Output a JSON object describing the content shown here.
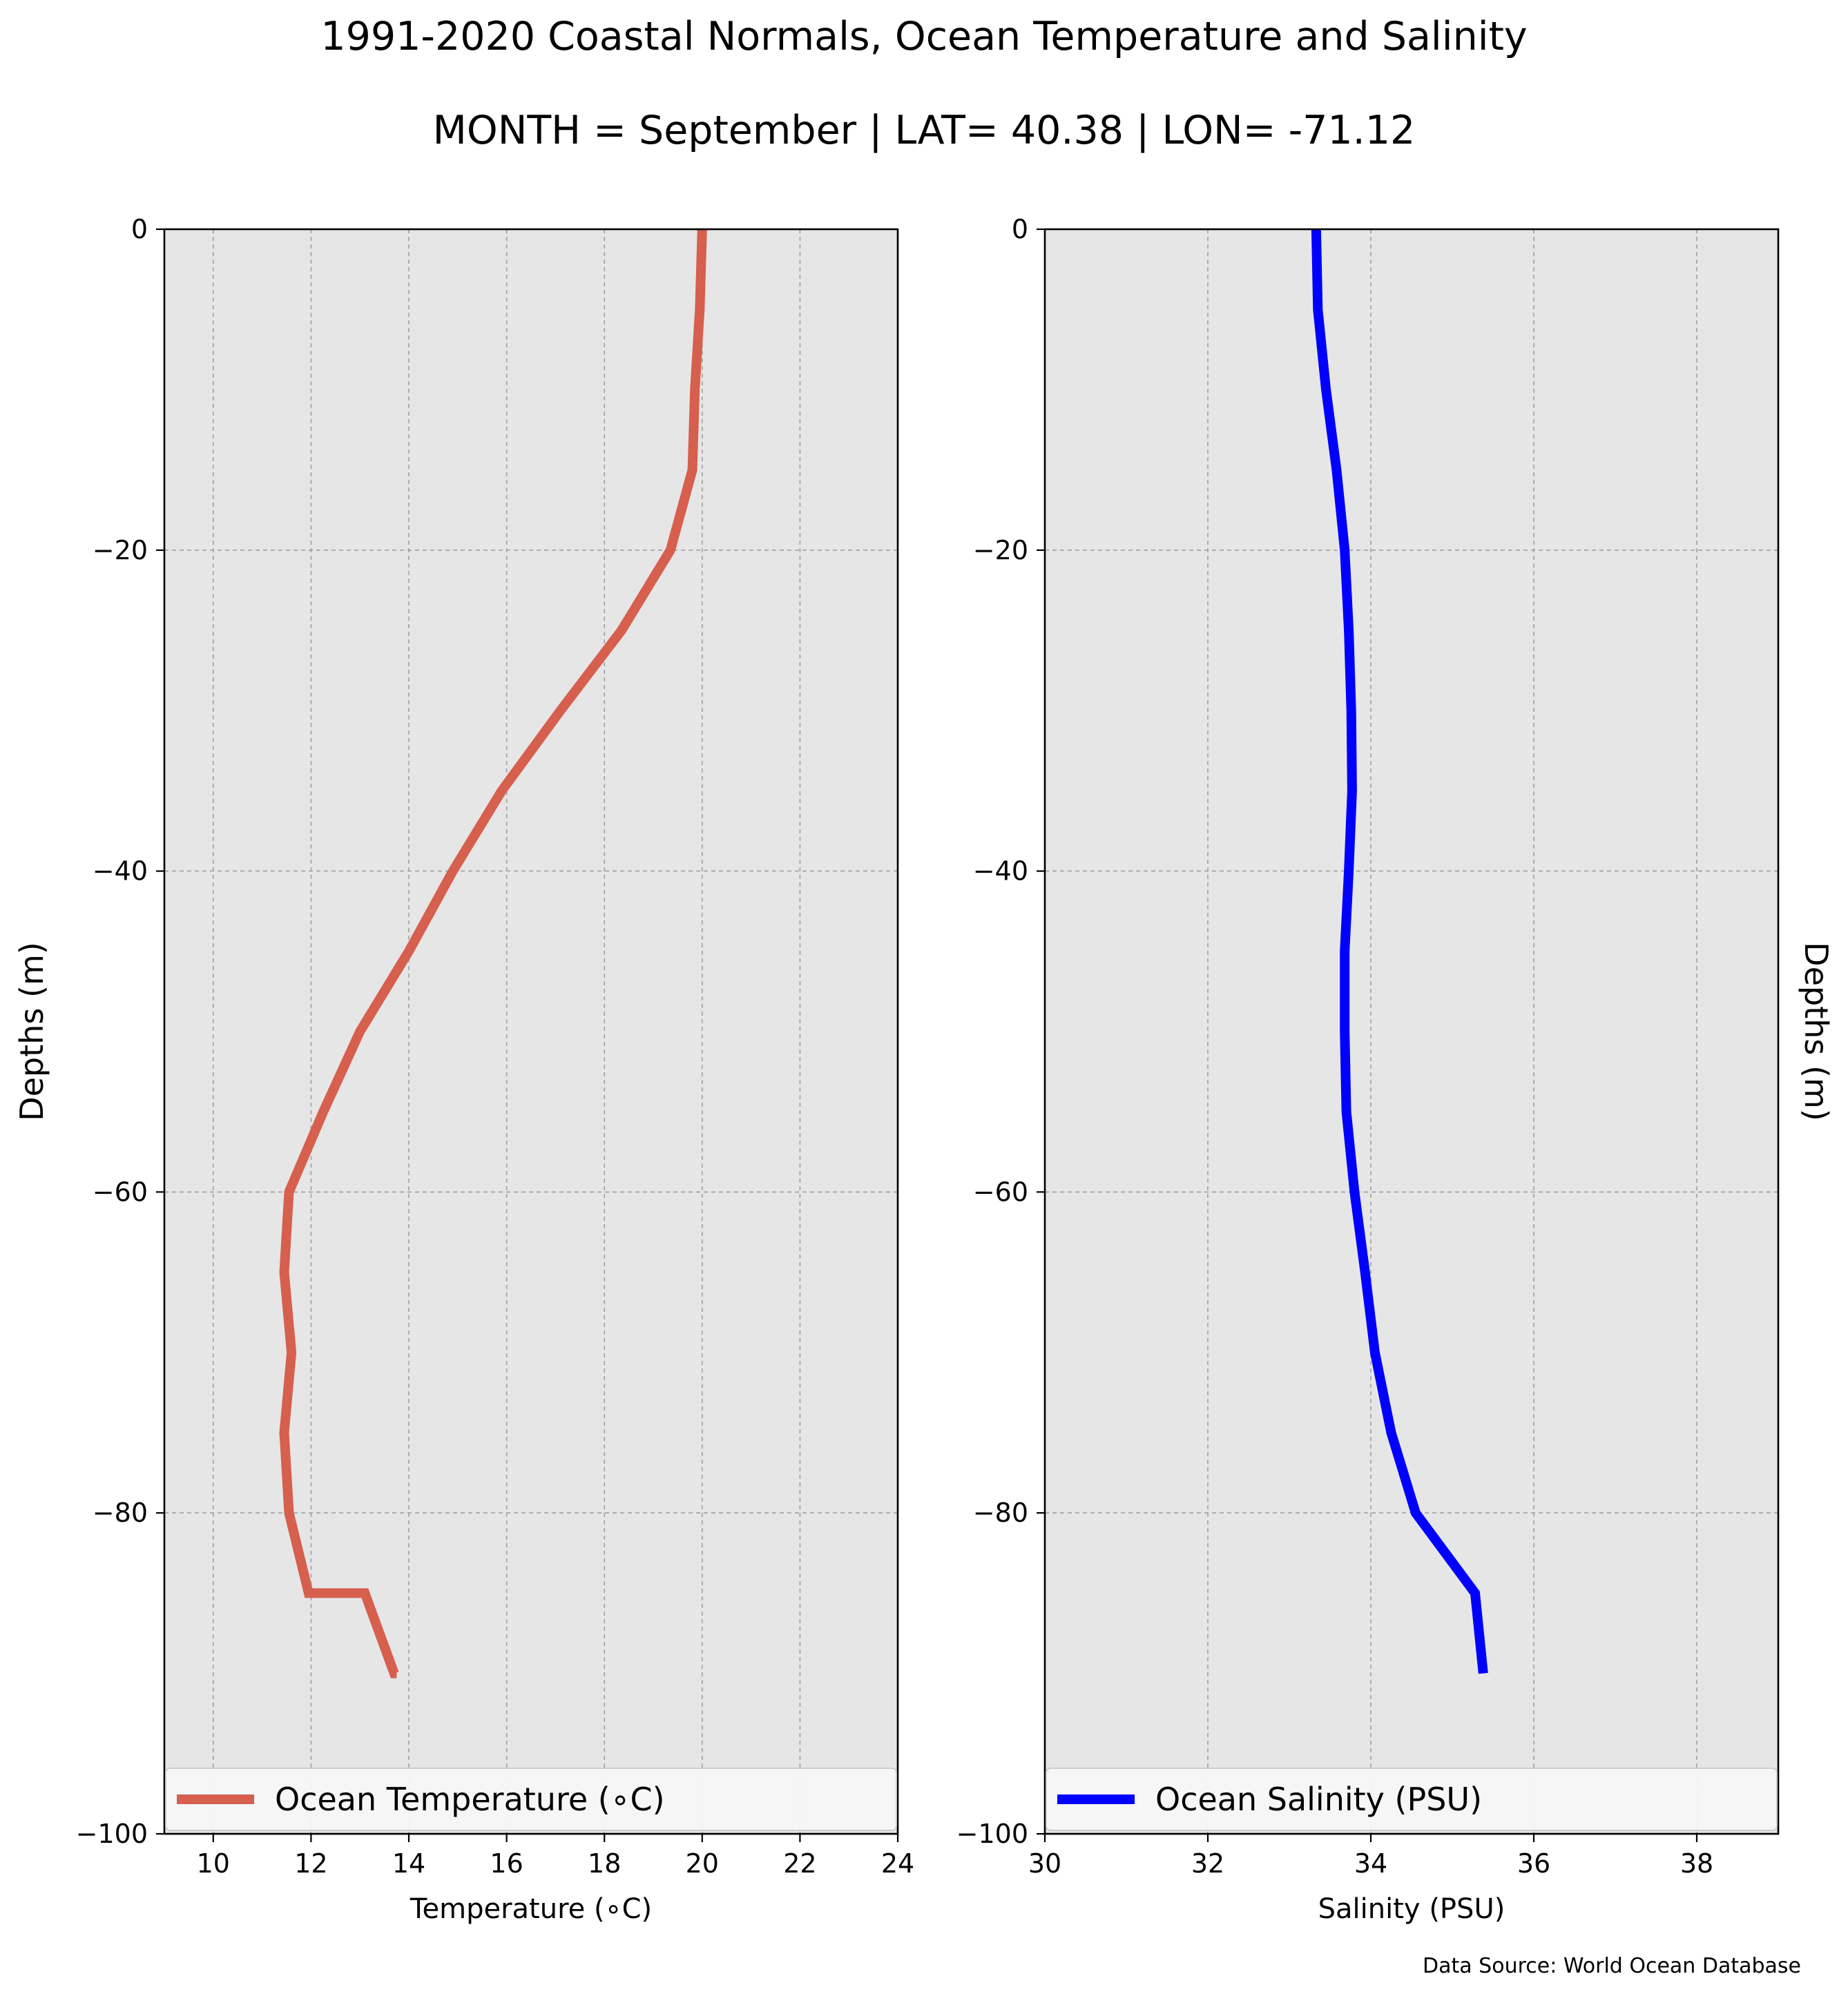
{
  "title": "1991-2020 Coastal Normals, Ocean Temperature and Salinity",
  "subtitle": "MONTH = September | LAT= 40.38 | LON= -71.12",
  "source_note": "Data Source: World Ocean Database",
  "colors": {
    "axes_background": "#e6e6e6",
    "grid": "#a0a0a0",
    "temperature_line": "#d65f4e",
    "salinity_line": "#0000ff"
  },
  "chart_data": [
    {
      "type": "line",
      "xlabel": "Temperature (∘C)",
      "ylabel": "Depths (m)",
      "ylabel_side": "left",
      "xlim": [
        9,
        24
      ],
      "ylim": [
        -100,
        0
      ],
      "xticks": [
        10,
        12,
        14,
        16,
        18,
        20,
        22,
        24
      ],
      "yticks": [
        0,
        -20,
        -40,
        -60,
        -80,
        -100
      ],
      "grid": true,
      "legend_placement": "bottom",
      "series": [
        {
          "name": "Ocean Temperature (∘C)",
          "color": "#d65f4e",
          "x": [
            20.0,
            19.95,
            19.85,
            19.8,
            19.35,
            18.35,
            17.1,
            15.9,
            14.9,
            14.0,
            13.0,
            12.25,
            11.55,
            11.45,
            11.6,
            11.45,
            11.55,
            11.95,
            13.1,
            13.7,
            13.75
          ],
          "y": [
            0,
            -5,
            -10,
            -15,
            -20,
            -25,
            -30,
            -35,
            -40,
            -45,
            -50,
            -55,
            -60,
            -65,
            -70,
            -75,
            -80,
            -85,
            -85,
            -90,
            -90
          ]
        }
      ]
    },
    {
      "type": "line",
      "xlabel": "Salinity (PSU)",
      "ylabel": "Depths (m)",
      "ylabel_side": "right",
      "xlim": [
        30,
        39
      ],
      "ylim": [
        -100,
        0
      ],
      "xticks": [
        30,
        32,
        34,
        36,
        38
      ],
      "yticks": [
        0,
        -20,
        -40,
        -60,
        -80,
        -100
      ],
      "grid": true,
      "legend_placement": "bottom",
      "series": [
        {
          "name": "Ocean Salinity (PSU)",
          "color": "#0000ff",
          "x": [
            33.33,
            33.35,
            33.45,
            33.58,
            33.68,
            33.73,
            33.76,
            33.77,
            33.73,
            33.68,
            33.68,
            33.7,
            33.8,
            33.93,
            34.05,
            34.25,
            34.55,
            35.28,
            35.38
          ],
          "y": [
            0,
            -5,
            -10,
            -15,
            -20,
            -25,
            -30,
            -35,
            -40,
            -45,
            -50,
            -55,
            -60,
            -65,
            -70,
            -75,
            -80,
            -85,
            -90
          ]
        }
      ]
    }
  ]
}
